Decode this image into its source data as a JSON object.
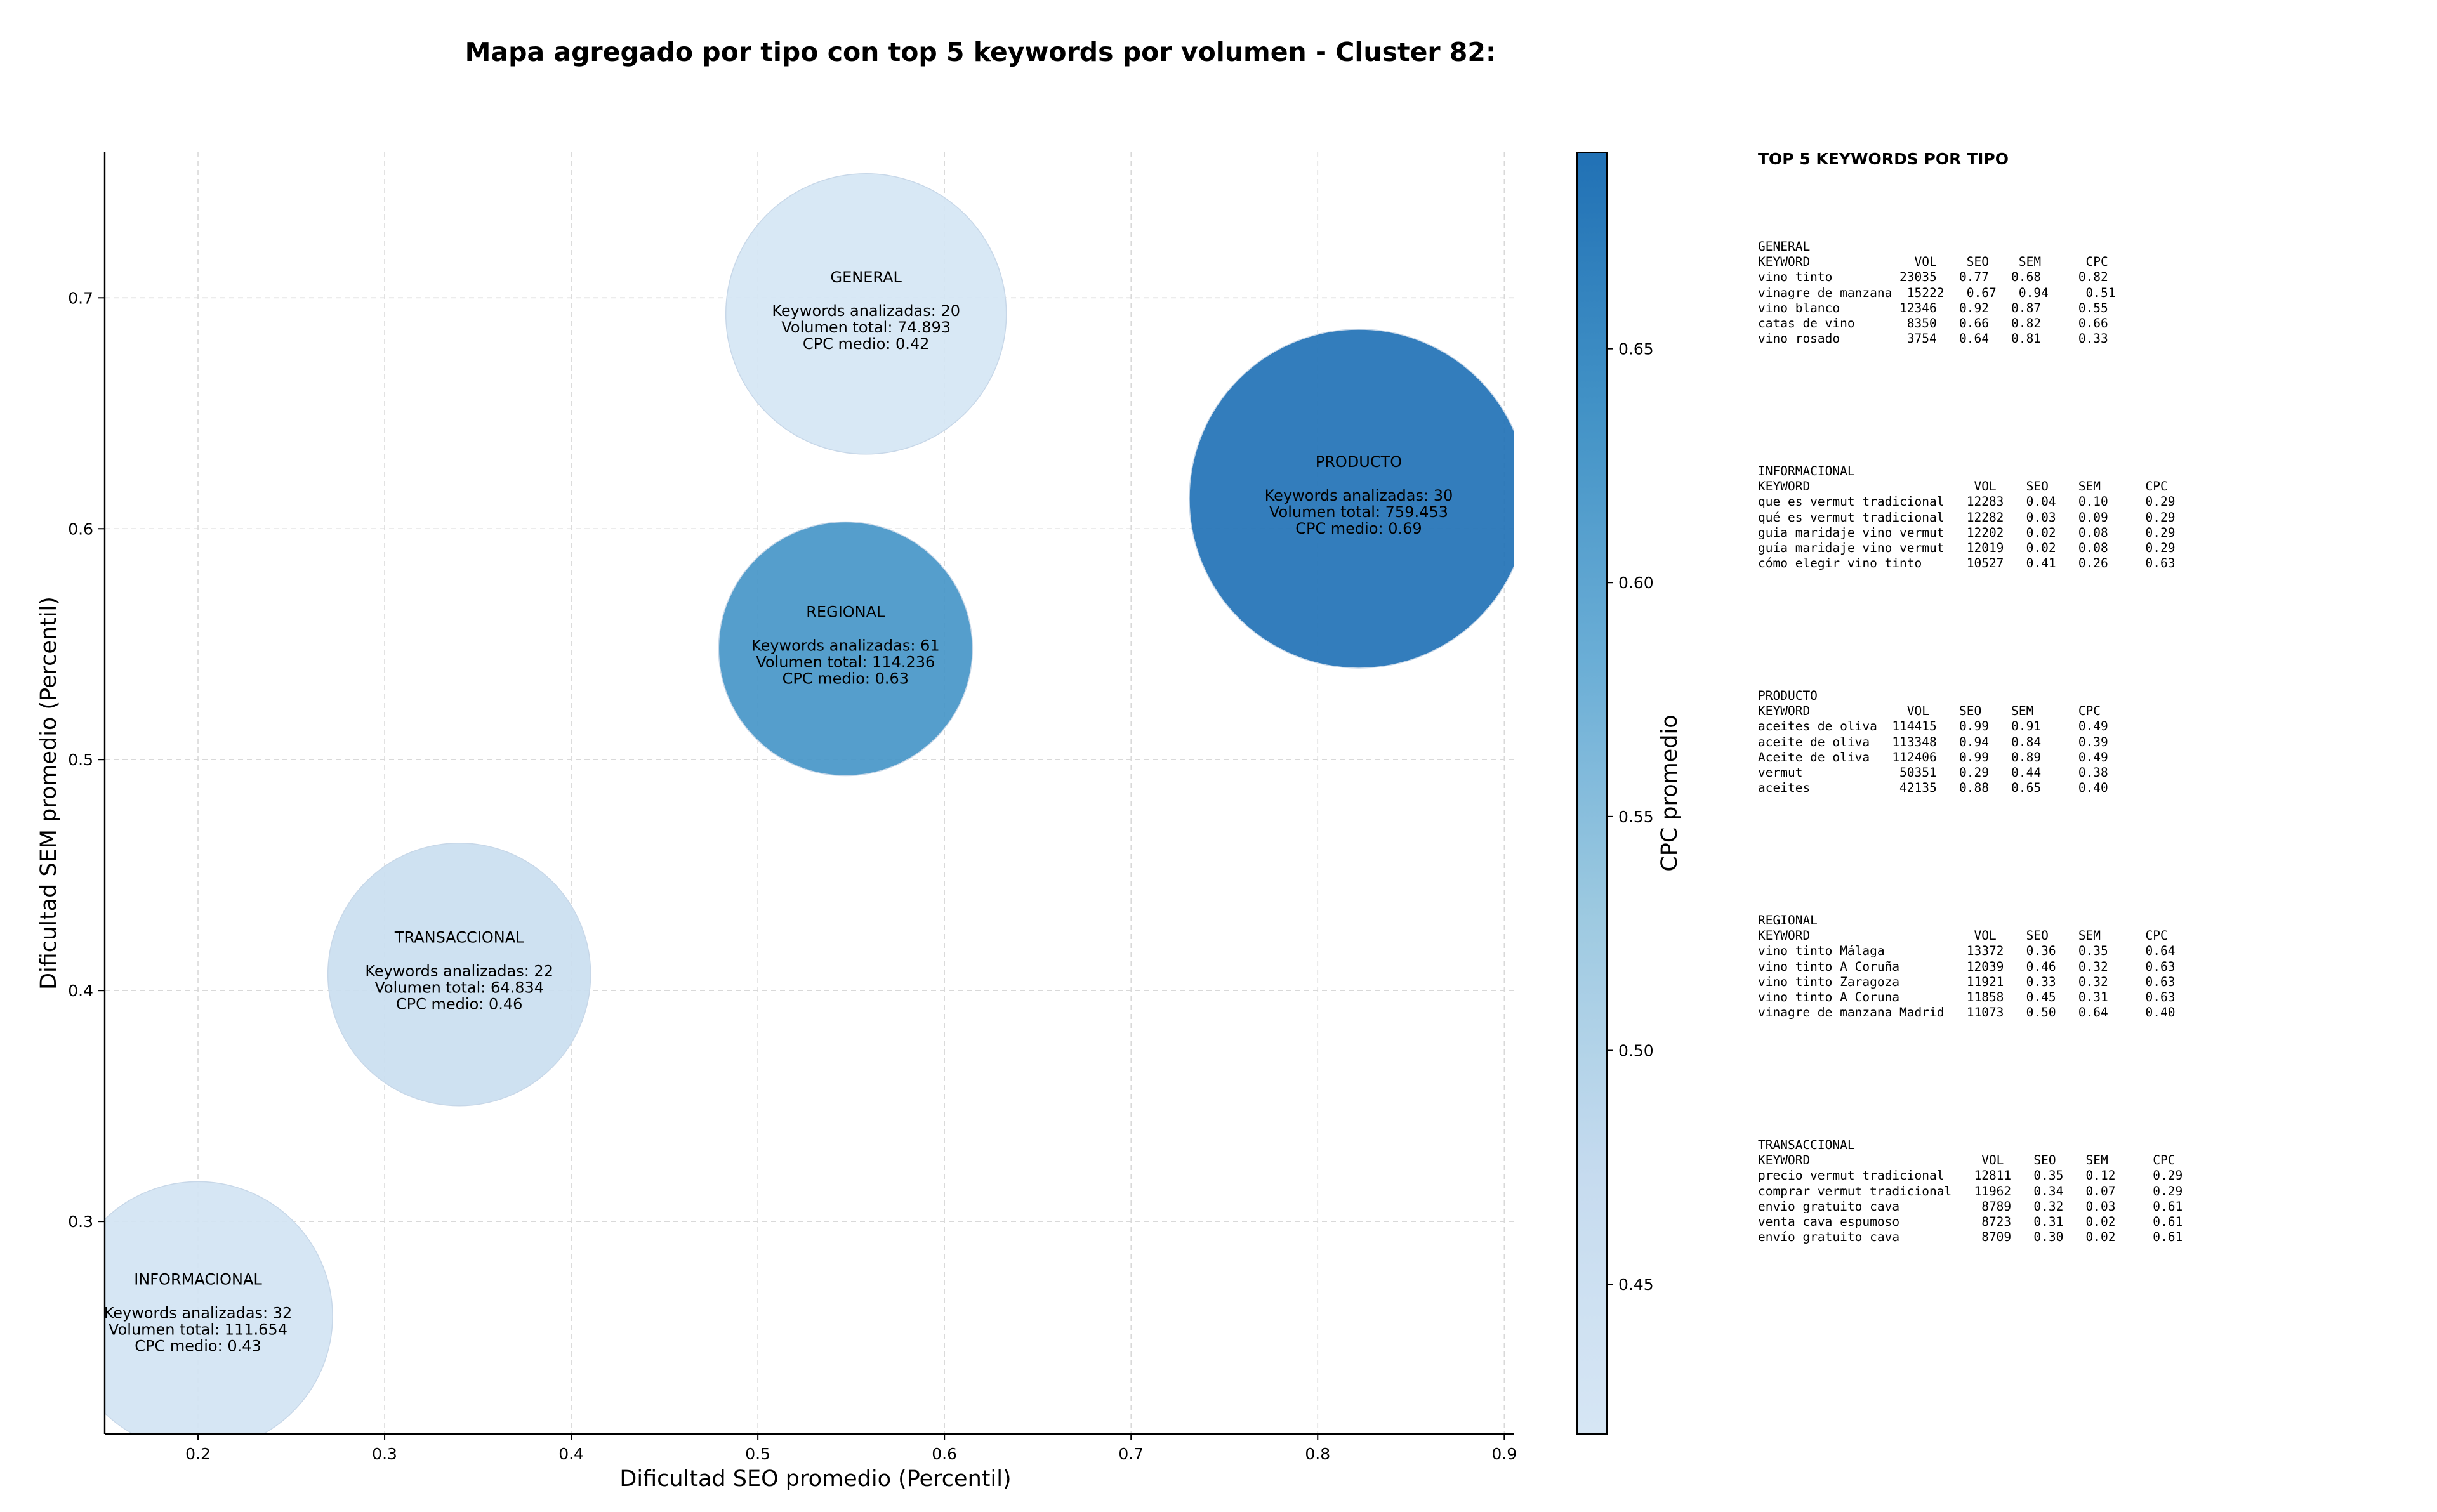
{
  "chart_data": {
    "type": "scatter",
    "title": "Mapa agregado por tipo con top 5 keywords por volumen - Cluster 82:",
    "xlabel": "Dificultad SEO promedio (Percentil)",
    "ylabel": "Dificultad SEM promedio (Percentil)",
    "xlim": [
      0.15,
      0.905
    ],
    "ylim": [
      0.208,
      0.763
    ],
    "xticks": [
      0.2,
      0.3,
      0.4,
      0.5,
      0.6,
      0.7,
      0.8,
      0.9
    ],
    "yticks": [
      0.3,
      0.4,
      0.5,
      0.6,
      0.7
    ],
    "grid": true,
    "colorbar": {
      "label": "CPC promedio",
      "range": [
        0.418,
        0.692
      ],
      "ticks": [
        0.45,
        0.5,
        0.55,
        0.6,
        0.65
      ],
      "colors": [
        "#d6e6f4",
        "#c6dbef",
        "#9ecae1",
        "#6baed6",
        "#4292c6",
        "#2171b5"
      ]
    },
    "points": [
      {
        "name": "GENERAL",
        "x": 0.558,
        "y": 0.693,
        "cpc": 0.42,
        "keywords": 20,
        "volume": "74.893",
        "lines": [
          "Keywords analizadas: 20",
          "Volumen total: 74.893",
          "CPC medio: 0.42"
        ]
      },
      {
        "name": "PRODUCTO",
        "x": 0.822,
        "y": 0.613,
        "cpc": 0.69,
        "keywords": 30,
        "volume": "759.453",
        "lines": [
          "Keywords analizadas: 30",
          "Volumen total: 759.453",
          "CPC medio: 0.69"
        ]
      },
      {
        "name": "REGIONAL",
        "x": 0.547,
        "y": 0.548,
        "cpc": 0.63,
        "keywords": 61,
        "volume": "114.236",
        "lines": [
          "Keywords analizadas: 61",
          "Volumen total: 114.236",
          "CPC medio: 0.63"
        ]
      },
      {
        "name": "TRANSACCIONAL",
        "x": 0.34,
        "y": 0.407,
        "cpc": 0.46,
        "keywords": 22,
        "volume": "64.834",
        "lines": [
          "Keywords analizadas: 22",
          "Volumen total: 64.834",
          "CPC medio: 0.46"
        ]
      },
      {
        "name": "INFORMACIONAL",
        "x": 0.2,
        "y": 0.259,
        "cpc": 0.43,
        "keywords": 32,
        "volume": "111.654",
        "lines": [
          "Keywords analizadas: 32",
          "Volumen total: 111.654",
          "CPC medio: 0.43"
        ]
      }
    ]
  },
  "side_panel": {
    "title": "TOP 5 KEYWORDS POR TIPO",
    "blocks": [
      {
        "name": "GENERAL",
        "header": "KEYWORD              VOL    SEO    SEM      CPC",
        "rows": [
          "vino tinto         23035   0.77   0.68     0.82",
          "vinagre de manzana  15222   0.67   0.94     0.51",
          "vino blanco        12346   0.92   0.87     0.55",
          "catas de vino       8350   0.66   0.82     0.66",
          "vino rosado         3754   0.64   0.81     0.33"
        ]
      },
      {
        "name": "INFORMACIONAL",
        "header": "KEYWORD                      VOL    SEO    SEM      CPC",
        "rows": [
          "que es vermut tradicional   12283   0.04   0.10     0.29",
          "qué es vermut tradicional   12282   0.03   0.09     0.29",
          "guia maridaje vino vermut   12202   0.02   0.08     0.29",
          "guía maridaje vino vermut   12019   0.02   0.08     0.29",
          "cómo elegir vino tinto      10527   0.41   0.26     0.63"
        ]
      },
      {
        "name": "PRODUCTO",
        "header": "KEYWORD             VOL    SEO    SEM      CPC",
        "rows": [
          "aceites de oliva  114415   0.99   0.91     0.49",
          "aceite de oliva   113348   0.94   0.84     0.39",
          "Aceite de oliva   112406   0.99   0.89     0.49",
          "vermut             50351   0.29   0.44     0.38",
          "aceites            42135   0.88   0.65     0.40"
        ]
      },
      {
        "name": "REGIONAL",
        "header": "KEYWORD                      VOL    SEO    SEM      CPC",
        "rows": [
          "vino tinto Málaga           13372   0.36   0.35     0.64",
          "vino tinto A Coruña         12039   0.46   0.32     0.63",
          "vino tinto Zaragoza         11921   0.33   0.32     0.63",
          "vino tinto A Coruna         11858   0.45   0.31     0.63",
          "vinagre de manzana Madrid   11073   0.50   0.64     0.40"
        ]
      },
      {
        "name": "TRANSACCIONAL",
        "header": "KEYWORD                       VOL    SEO    SEM      CPC",
        "rows": [
          "precio vermut tradicional    12811   0.35   0.12     0.29",
          "comprar vermut tradicional   11962   0.34   0.07     0.29",
          "envio gratuito cava           8789   0.32   0.03     0.61",
          "venta cava espumoso           8723   0.31   0.02     0.61",
          "envío gratuito cava           8709   0.30   0.02     0.61"
        ]
      }
    ]
  }
}
